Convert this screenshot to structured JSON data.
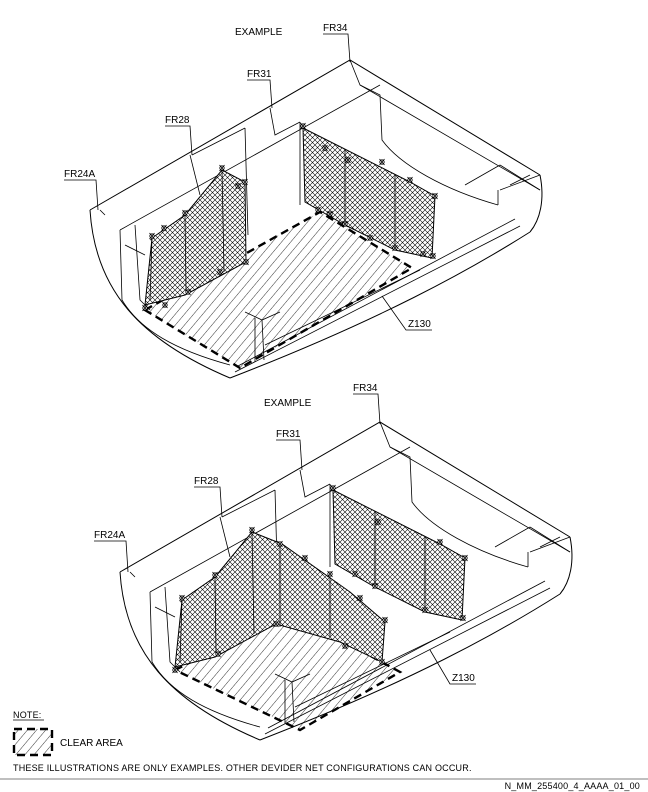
{
  "diagram_top": {
    "example_label": "EXAMPLE",
    "frames": {
      "fr34": "FR34",
      "fr31": "FR31",
      "fr28": "FR28",
      "fr24a": "FR24A"
    },
    "z_label": "Z130"
  },
  "diagram_bottom": {
    "example_label": "EXAMPLE",
    "frames": {
      "fr34": "FR34",
      "fr31": "FR31",
      "fr28": "FR28",
      "fr24a": "FR24A"
    },
    "z_label": "Z130"
  },
  "legend": {
    "heading": "NOTE:",
    "clear_area_label": "CLEAR AREA"
  },
  "disclaimer": "THESE ILLUSTRATIONS ARE ONLY EXAMPLES. OTHER DEVIDER NET CONFIGURATIONS CAN OCCUR.",
  "figure_id": "N_MM_255400_4_AAAA_01_00"
}
